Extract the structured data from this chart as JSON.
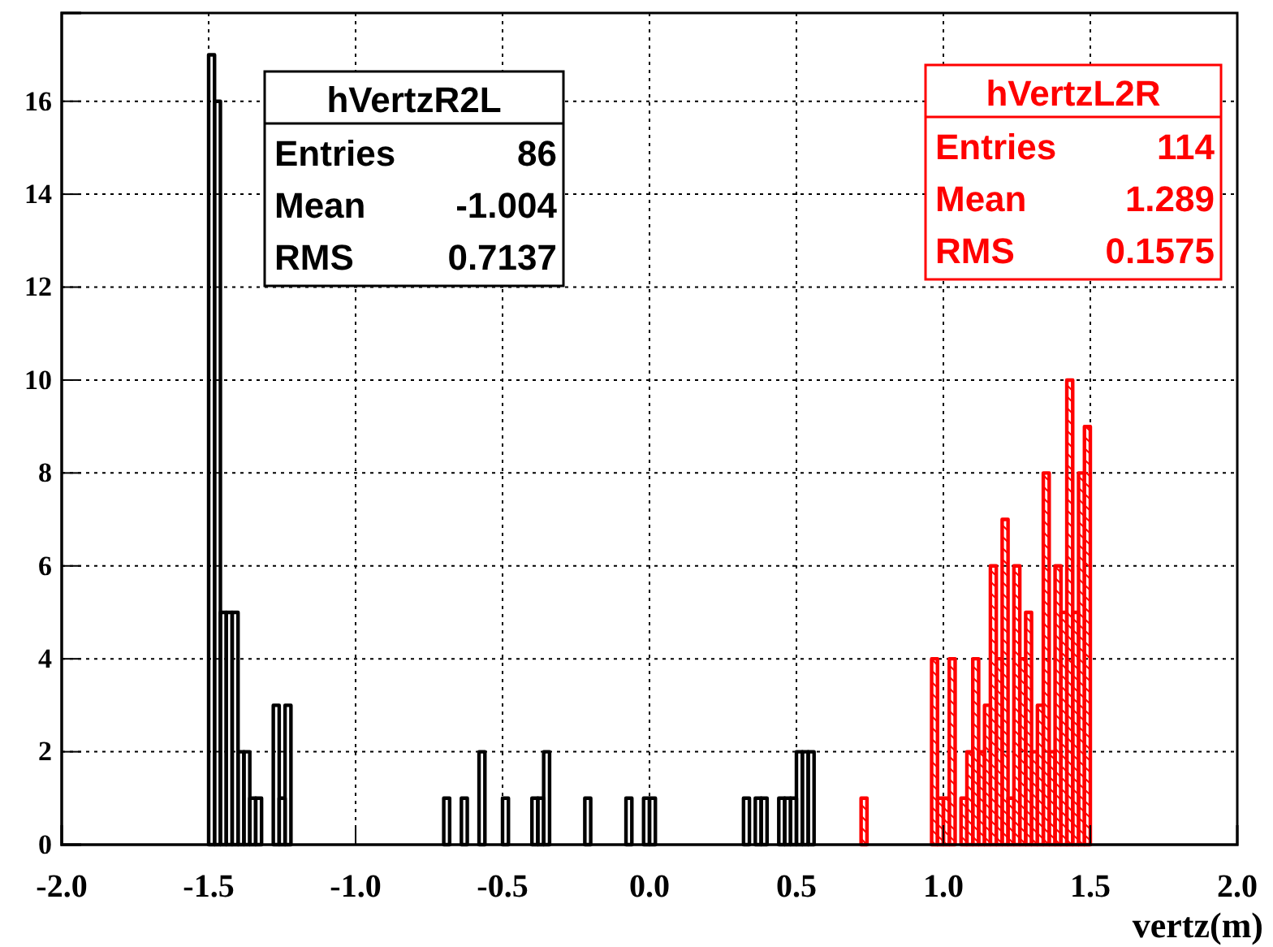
{
  "chart_data": {
    "type": "histogram",
    "bins": [
      -2,
      -1.98,
      -1.96,
      -1.94,
      -1.92,
      -1.9,
      -1.88,
      -1.86,
      -1.84,
      -1.82,
      -1.8,
      -1.78,
      -1.76,
      -1.74,
      -1.72,
      -1.7,
      -1.68,
      -1.66,
      -1.64,
      -1.62,
      -1.6,
      -1.58,
      -1.56,
      -1.54,
      -1.52,
      -1.5,
      -1.48,
      -1.46,
      -1.44,
      -1.42,
      -1.4,
      -1.38,
      -1.36,
      -1.34,
      -1.32,
      -1.3,
      -1.28,
      -1.26,
      -1.24,
      -1.22,
      -1.2,
      -1.18,
      -1.16,
      -1.14,
      -1.12,
      -1.1,
      -1.08,
      -1.06,
      -1.04,
      -1.02,
      -1,
      -0.98,
      -0.96,
      -0.94,
      -0.92,
      -0.9,
      -0.88,
      -0.86,
      -0.84,
      -0.82,
      -0.8,
      -0.78,
      -0.76,
      -0.74,
      -0.72,
      -0.7,
      -0.68,
      -0.66,
      -0.64,
      -0.62,
      -0.6,
      -0.58,
      -0.56,
      -0.54,
      -0.52,
      -0.5,
      -0.48,
      -0.46,
      -0.44,
      -0.42,
      -0.4,
      -0.38,
      -0.36,
      -0.34,
      -0.32,
      -0.3,
      -0.28,
      -0.26,
      -0.24,
      -0.22,
      -0.2,
      -0.18,
      -0.16,
      -0.14,
      -0.12,
      -0.1,
      -0.08,
      -0.06,
      -0.04,
      -0.02,
      0,
      0.02,
      0.04,
      0.06,
      0.08,
      0.1,
      0.12,
      0.14,
      0.16,
      0.18,
      0.2,
      0.22,
      0.24,
      0.26,
      0.28,
      0.3,
      0.32,
      0.34,
      0.36,
      0.38,
      0.4,
      0.42,
      0.44,
      0.46,
      0.48,
      0.5,
      0.52,
      0.54,
      0.56,
      0.58,
      0.6,
      0.62,
      0.64,
      0.66,
      0.68,
      0.7,
      0.72,
      0.74,
      0.76,
      0.78,
      0.8,
      0.82,
      0.84,
      0.86,
      0.88,
      0.9,
      0.92,
      0.94,
      0.96,
      0.98,
      1,
      1.02,
      1.04,
      1.06,
      1.08,
      1.1,
      1.12,
      1.14,
      1.16,
      1.18,
      1.2,
      1.22,
      1.24,
      1.26,
      1.28,
      1.3,
      1.32,
      1.34,
      1.36,
      1.38,
      1.4,
      1.42,
      1.44,
      1.46,
      1.48,
      1.5,
      1.52,
      1.54,
      1.56,
      1.58,
      1.6,
      1.62,
      1.64,
      1.66,
      1.68,
      1.7,
      1.72,
      1.74,
      1.76,
      1.78,
      1.8,
      1.82,
      1.84,
      1.86,
      1.88,
      1.9,
      1.92,
      1.94,
      1.96,
      1.98,
      2
    ],
    "series": [
      {
        "name": "hVertzR2L",
        "color": "#000000",
        "values": [
          0,
          0,
          0,
          0,
          0,
          0,
          0,
          0,
          0,
          0,
          0,
          0,
          0,
          0,
          0,
          0,
          0,
          0,
          0,
          0,
          0,
          0,
          0,
          0,
          0,
          17,
          16,
          5,
          5,
          5,
          2,
          2,
          1,
          1,
          0,
          0,
          3,
          1,
          3,
          0,
          0,
          0,
          0,
          0,
          0,
          0,
          0,
          0,
          0,
          0,
          0,
          0,
          0,
          0,
          0,
          0,
          0,
          0,
          0,
          0,
          0,
          0,
          0,
          0,
          0,
          1,
          0,
          0,
          1,
          0,
          0,
          2,
          0,
          0,
          0,
          1,
          0,
          0,
          0,
          0,
          1,
          1,
          2,
          0,
          0,
          0,
          0,
          0,
          0,
          1,
          0,
          0,
          0,
          0,
          0,
          0,
          1,
          0,
          0,
          1,
          1,
          0,
          0,
          0,
          0,
          0,
          0,
          0,
          0,
          0,
          0,
          0,
          0,
          0,
          0,
          0,
          1,
          0,
          1,
          1,
          0,
          0,
          1,
          1,
          1,
          2,
          2,
          2,
          0,
          0,
          0,
          0,
          0,
          0,
          0,
          0,
          0,
          0,
          0,
          0,
          0,
          0,
          0,
          0,
          0,
          0,
          0,
          0,
          0,
          0,
          0,
          0,
          0,
          0,
          0,
          0,
          0,
          0,
          0,
          0,
          0,
          0,
          0,
          0,
          0,
          0,
          0,
          0,
          0,
          0,
          0,
          0,
          0,
          0,
          0,
          0,
          0,
          0,
          0,
          0,
          0,
          0,
          0,
          0,
          0,
          0,
          0,
          0,
          0,
          0,
          0,
          0,
          0,
          0,
          0,
          0,
          0,
          0,
          0,
          0
        ]
      },
      {
        "name": "hVertzL2R",
        "color": "#ff0000",
        "values": [
          0,
          0,
          0,
          0,
          0,
          0,
          0,
          0,
          0,
          0,
          0,
          0,
          0,
          0,
          0,
          0,
          0,
          0,
          0,
          0,
          0,
          0,
          0,
          0,
          0,
          0,
          0,
          0,
          0,
          0,
          0,
          0,
          0,
          0,
          0,
          0,
          0,
          0,
          0,
          0,
          0,
          0,
          0,
          0,
          0,
          0,
          0,
          0,
          0,
          0,
          0,
          0,
          0,
          0,
          0,
          0,
          0,
          0,
          0,
          0,
          0,
          0,
          0,
          0,
          0,
          0,
          0,
          0,
          0,
          0,
          0,
          0,
          0,
          0,
          0,
          0,
          0,
          0,
          0,
          0,
          0,
          0,
          0,
          0,
          0,
          0,
          0,
          0,
          0,
          0,
          0,
          0,
          0,
          0,
          0,
          0,
          0,
          0,
          0,
          0,
          0,
          0,
          0,
          0,
          0,
          0,
          0,
          0,
          0,
          0,
          0,
          0,
          0,
          0,
          0,
          0,
          0,
          0,
          0,
          0,
          0,
          0,
          0,
          0,
          0,
          0,
          0,
          0,
          0,
          0,
          0,
          0,
          0,
          0,
          0,
          0,
          1,
          0,
          0,
          0,
          0,
          0,
          0,
          0,
          0,
          0,
          0,
          0,
          4,
          1,
          1,
          4,
          0,
          1,
          2,
          4,
          2,
          3,
          6,
          4,
          7,
          1,
          6,
          4,
          5,
          2,
          3,
          8,
          2,
          6,
          5,
          10,
          5,
          8,
          9,
          0,
          0,
          0,
          0,
          0,
          0,
          0,
          0,
          0,
          0,
          0,
          0,
          0,
          0,
          0,
          0,
          0,
          0,
          0,
          0,
          0,
          0,
          0,
          0,
          0
        ]
      }
    ],
    "xlabel": "vertz(m)",
    "xlim": [
      -2,
      2
    ],
    "xticks": [
      {
        "value": -2,
        "label": "-2.0"
      },
      {
        "value": -1.5,
        "label": "-1.5"
      },
      {
        "value": -1,
        "label": "-1.0"
      },
      {
        "value": -0.5,
        "label": "-0.5"
      },
      {
        "value": 0,
        "label": "0.0"
      },
      {
        "value": 0.5,
        "label": "0.5"
      },
      {
        "value": 1,
        "label": "1.0"
      },
      {
        "value": 1.5,
        "label": "1.5"
      },
      {
        "value": 2,
        "label": "2.0"
      }
    ],
    "ylim": [
      0,
      17.9
    ],
    "yticks": [
      0,
      2,
      4,
      6,
      8,
      10,
      12,
      14,
      16
    ],
    "grid": true,
    "legend": "top",
    "annotations": [
      "Entries",
      "86",
      "Mean",
      "-1.004",
      "RMS",
      "0.7137",
      "Entries",
      "114",
      "Mean",
      "1.289",
      "RMS",
      "0.1575"
    ]
  }
}
